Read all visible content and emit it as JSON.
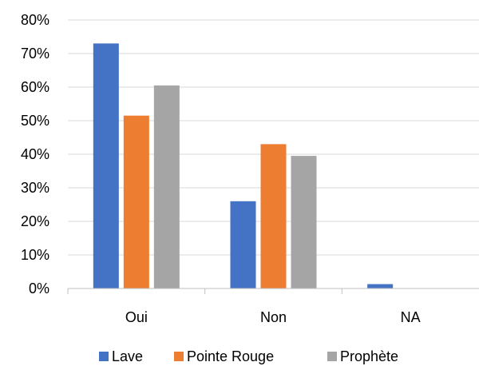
{
  "chart_data": {
    "type": "bar",
    "categories": [
      "Oui",
      "Non",
      "NA"
    ],
    "series": [
      {
        "name": "Lave",
        "values": [
          73,
          26,
          1.3
        ],
        "color": "#4472C4"
      },
      {
        "name": "Pointe Rouge",
        "values": [
          51.5,
          43,
          0
        ],
        "color": "#ED7D31"
      },
      {
        "name": "Prophète",
        "values": [
          60.5,
          39.5,
          0
        ],
        "color": "#A5A5A5"
      }
    ],
    "ylim": [
      0,
      80
    ],
    "yticks": [
      "0%",
      "10%",
      "20%",
      "30%",
      "40%",
      "50%",
      "60%",
      "70%",
      "80%"
    ],
    "grid": true,
    "legend_position": "bottom"
  }
}
